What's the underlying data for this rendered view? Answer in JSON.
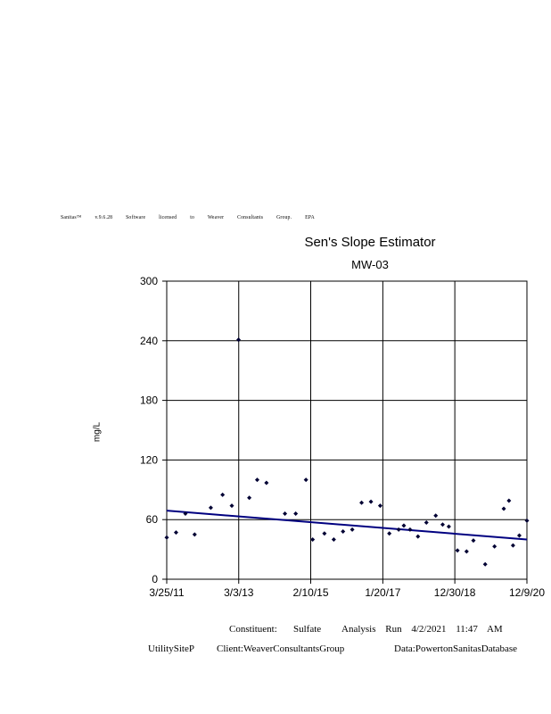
{
  "license_text": "Sanitas™ v.9.6.28 Software licensed to Weaver Consultants Group. EPA",
  "footer": {
    "constituent_label": "Constituent:",
    "constituent_value": "Sulfate",
    "analysis_text": "Analysis Run 4/2/2021 11:47 AM",
    "site": "UtilitySiteP",
    "client": "Client:WeaverConsultantsGroup",
    "data_source": "Data:PowertonSanitasDatabase"
  },
  "colors": {
    "points": "#000033",
    "trend_line": "#000080",
    "grid": "#000000"
  },
  "chart_data": {
    "type": "scatter",
    "title": "Sen's Slope Estimator",
    "subtitle": "MW-03",
    "xlabel": "",
    "ylabel": "mg/L",
    "ylim": [
      0,
      300
    ],
    "xlim": [
      "2011-03-25",
      "2020-12-09"
    ],
    "x_tick_labels": [
      "3/25/11",
      "3/3/13",
      "2/10/15",
      "1/20/17",
      "12/30/18",
      "12/9/20"
    ],
    "x_ticks": [
      "2011-03-25",
      "2013-03-03",
      "2015-02-10",
      "2017-01-20",
      "2018-12-30",
      "2020-12-09"
    ],
    "y_ticks": [
      0,
      60,
      120,
      180,
      240,
      300
    ],
    "grid": true,
    "series": [
      {
        "points": [
          [
            "2011-03-25",
            42
          ],
          [
            "2011-06-25",
            47
          ],
          [
            "2011-09-25",
            66
          ],
          [
            "2011-12-25",
            45
          ],
          [
            "2012-06-01",
            72
          ],
          [
            "2012-09-25",
            85
          ],
          [
            "2012-12-25",
            74
          ],
          [
            "2013-03-01",
            241
          ],
          [
            "2013-06-15",
            82
          ],
          [
            "2013-09-01",
            100
          ],
          [
            "2013-12-01",
            97
          ],
          [
            "2014-06-01",
            66
          ],
          [
            "2014-09-15",
            66
          ],
          [
            "2014-12-25",
            100
          ],
          [
            "2015-03-01",
            40
          ],
          [
            "2015-06-25",
            46
          ],
          [
            "2015-09-25",
            40
          ],
          [
            "2015-12-25",
            48
          ],
          [
            "2016-03-25",
            50
          ],
          [
            "2016-06-25",
            77
          ],
          [
            "2016-09-25",
            78
          ],
          [
            "2016-12-25",
            74
          ],
          [
            "2017-03-25",
            46
          ],
          [
            "2017-06-25",
            50
          ],
          [
            "2017-08-15",
            54
          ],
          [
            "2017-10-15",
            50
          ],
          [
            "2018-01-01",
            43
          ],
          [
            "2018-03-25",
            57
          ],
          [
            "2018-06-25",
            64
          ],
          [
            "2018-09-01",
            55
          ],
          [
            "2018-11-01",
            53
          ],
          [
            "2019-01-25",
            29
          ],
          [
            "2019-04-25",
            28
          ],
          [
            "2019-07-01",
            39
          ],
          [
            "2019-10-25",
            15
          ],
          [
            "2020-01-25",
            33
          ],
          [
            "2020-04-25",
            71
          ],
          [
            "2020-06-15",
            79
          ],
          [
            "2020-07-25",
            34
          ],
          [
            "2020-09-25",
            44
          ],
          [
            "2020-12-09",
            59
          ]
        ]
      }
    ],
    "trend_line": [
      [
        "2011-03-25",
        69
      ],
      [
        "2020-12-09",
        40
      ]
    ]
  }
}
